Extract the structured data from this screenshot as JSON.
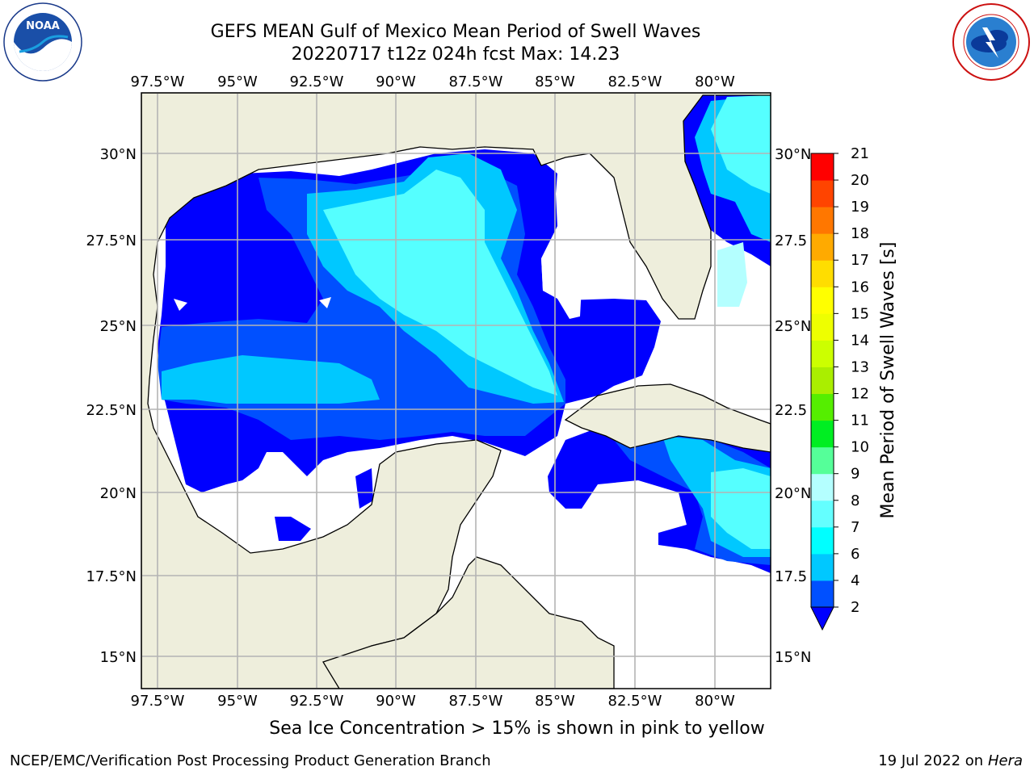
{
  "header": {
    "title_line1": "GEFS MEAN Gulf of Mexico Mean Period of Swell Waves",
    "title_line2": "20220717 t12z 024h fcst   Max: 14.23"
  },
  "logos": {
    "left": {
      "text": "NOAA",
      "ring_text": "NATIONAL OCEANIC AND ATMOSPHERIC ADMINISTRATION · U.S. DEPARTMENT OF COMMERCE",
      "icon": "noaa-logo"
    },
    "right": {
      "ring_text": "NATIONAL WEATHER SERVICE",
      "icon": "nws-logo"
    }
  },
  "map": {
    "lon_labels": [
      "97.5°W",
      "95°W",
      "92.5°W",
      "90°W",
      "87.5°W",
      "85°W",
      "82.5°W",
      "80°W"
    ],
    "lat_labels_left": [
      "30°N",
      "27.5°N",
      "25°N",
      "22.5°N",
      "20°N",
      "17.5°N",
      "15°N"
    ],
    "lat_labels_right": [
      "30°N",
      "27.5",
      "25°N",
      "22.5",
      "20°N",
      "17.5",
      "15°N"
    ],
    "colors": {
      "land": "#eeeedc",
      "grid": "#b4b4b4",
      "coast": "#000000"
    }
  },
  "colorbar": {
    "label": "Mean Period of Swell Waves [s]",
    "ticks": [
      "2",
      "4",
      "6",
      "7",
      "8",
      "9",
      "10",
      "11",
      "12",
      "13",
      "14",
      "15",
      "16",
      "17",
      "18",
      "19",
      "20",
      "21"
    ],
    "colors": [
      "#0050ff",
      "#00c8ff",
      "#00ffff",
      "#64ffff",
      "#b4ffff",
      "#55ff99",
      "#00ee22",
      "#55ee00",
      "#aaee00",
      "#ccff00",
      "#eeff00",
      "#ffff00",
      "#ffdd00",
      "#ffaa00",
      "#ff7700",
      "#ff4400",
      "#ff0000"
    ],
    "extend_color": "#0000ff"
  },
  "caption": "Sea Ice Concentration > 15% is shown in pink to yellow",
  "footer": {
    "left": "NCEP/EMC/Verification Post Processing Product Generation Branch",
    "right_prefix": "19 Jul 2022 on ",
    "right_host": "Hera"
  }
}
